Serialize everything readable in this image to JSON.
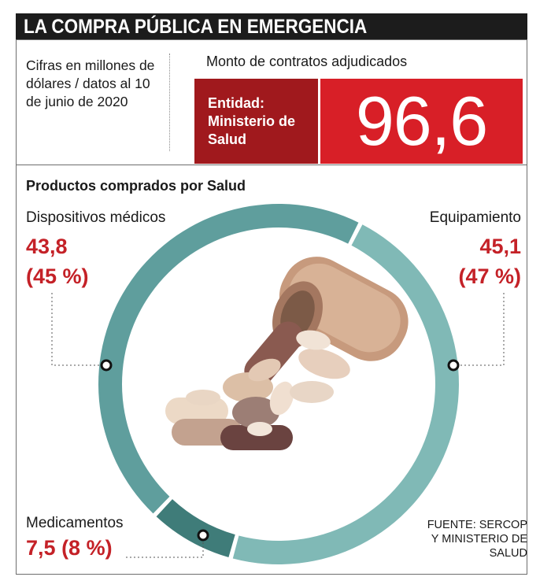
{
  "header": {
    "title": "LA COMPRA PÚBLICA EN EMERGENCIA"
  },
  "note": "Cifras en millones de dólares / datos al 10 de junio de 2020",
  "contract": {
    "label": "Monto de contratos adjudicados",
    "entity": "Entidad: Ministerio de Salud",
    "amount": "96,6"
  },
  "section_title": "Productos comprados por Salud",
  "source": "FUENTE: SERCOP Y MINISTERIO DE SALUD",
  "colors": {
    "dispositivos": "#5f9e9d",
    "equipamiento": "#80b9b6",
    "medicamentos": "#3f7c79",
    "accent": "#c42127",
    "entity_box": "#a0191d",
    "value_box": "#d81f27"
  },
  "chart_data": {
    "type": "pie",
    "variant": "donut",
    "title": "Productos comprados por Salud",
    "unit": "millones de dólares",
    "slices": [
      {
        "name": "Equipamiento",
        "value": 45.1,
        "value_label": "45,1",
        "percent_label": "(47 %)"
      },
      {
        "name": "Medicamentos",
        "value": 7.5,
        "value_label": "7,5",
        "percent_label": "(8 %)"
      },
      {
        "name": "Dispositivos médicos",
        "value": 43.8,
        "value_label": "43,8",
        "percent_label": "(45 %)"
      }
    ],
    "total": 96.6
  }
}
